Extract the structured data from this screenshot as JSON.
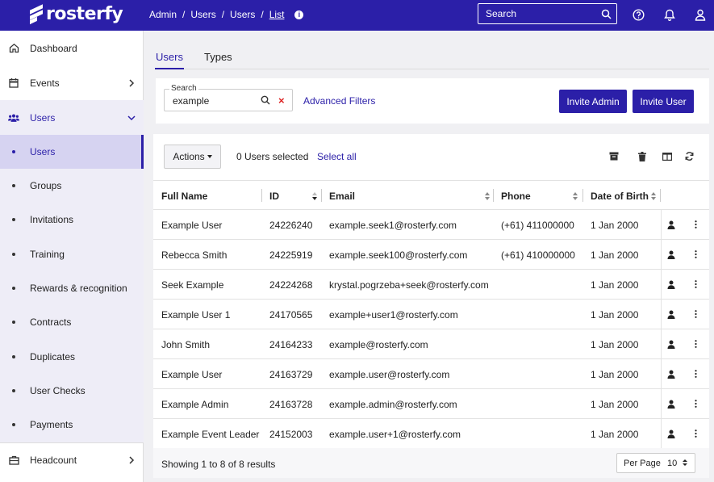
{
  "brand": {
    "name": "rosterfy",
    "primary_color": "#2b1fa8",
    "danger_color": "#d22222"
  },
  "breadcrumb": [
    "Admin",
    "Users",
    "Users",
    "List"
  ],
  "top_search": {
    "placeholder": "Search"
  },
  "top_icons": [
    "help-icon",
    "bell-icon",
    "user-icon"
  ],
  "sidebar": {
    "items": [
      {
        "label": "Dashboard",
        "icon": "home-icon"
      },
      {
        "label": "Events",
        "icon": "calendar-icon"
      },
      {
        "label": "Users",
        "icon": "users-icon",
        "expanded": true
      },
      {
        "label": "Headcount",
        "icon": "briefcase-icon"
      }
    ],
    "users_sub": [
      "Users",
      "Groups",
      "Invitations",
      "Training",
      "Rewards & recognition",
      "Contracts",
      "Duplicates",
      "User Checks",
      "Payments"
    ],
    "active_sub": "Users"
  },
  "tabs": [
    {
      "label": "Users",
      "active": true
    },
    {
      "label": "Types",
      "active": false
    }
  ],
  "filters": {
    "search_label": "Search",
    "search_value": "example",
    "advanced_label": "Advanced Filters",
    "invite_admin": "Invite Admin",
    "invite_user": "Invite User"
  },
  "toolbar": {
    "actions_label": "Actions",
    "selected_text": "0 Users selected",
    "select_all": "Select all",
    "icons": [
      "archive-icon",
      "trash-icon",
      "columns-icon",
      "refresh-icon"
    ]
  },
  "table": {
    "columns": [
      "Full Name",
      "ID",
      "Email",
      "Phone",
      "Date of Birth"
    ],
    "sorted_column": "ID",
    "rows": [
      {
        "name": "Example User",
        "id": "24226240",
        "email": "example.seek1@rosterfy.com",
        "phone": "(+61) 411000000",
        "dob": "1 Jan 2000"
      },
      {
        "name": "Rebecca Smith",
        "id": "24225919",
        "email": "example.seek100@rosterfy.com",
        "phone": "(+61) 410000000",
        "dob": "1 Jan 2000"
      },
      {
        "name": "Seek Example",
        "id": "24224268",
        "email": "krystal.pogrzeba+seek@rosterfy.com",
        "phone": "",
        "dob": "1 Jan 2000"
      },
      {
        "name": "Example User 1",
        "id": "24170565",
        "email": "example+user1@rosterfy.com",
        "phone": "",
        "dob": "1 Jan 2000"
      },
      {
        "name": "John Smith",
        "id": "24164233",
        "email": "example@rosterfy.com",
        "phone": "",
        "dob": "1 Jan 2000"
      },
      {
        "name": "Example User",
        "id": "24163729",
        "email": "example.user@rosterfy.com",
        "phone": "",
        "dob": "1 Jan 2000"
      },
      {
        "name": "Example Admin",
        "id": "24163728",
        "email": "example.admin@rosterfy.com",
        "phone": "",
        "dob": "1 Jan 2000"
      },
      {
        "name": "Example Event Leader",
        "id": "24152003",
        "email": "example.user+1@rosterfy.com",
        "phone": "",
        "dob": "1 Jan 2000"
      }
    ]
  },
  "footer": {
    "results_text": "Showing 1 to 8 of 8 results",
    "per_page_label": "Per Page",
    "per_page_value": "10"
  }
}
